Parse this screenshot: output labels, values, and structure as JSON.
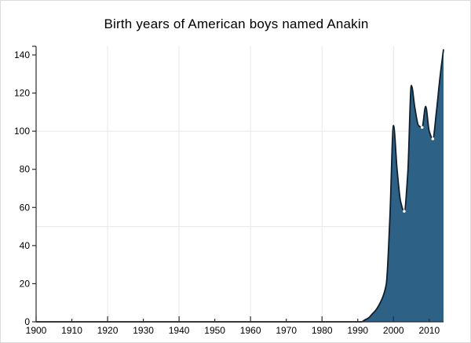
{
  "chart_data": {
    "type": "area",
    "title": "Birth years of American boys named Anakin",
    "series_name": "Anakin",
    "xlabel": "",
    "ylabel": "",
    "xlim": [
      1900,
      2014
    ],
    "ylim": [
      0,
      140
    ],
    "x_ticks": [
      1900,
      1910,
      1920,
      1930,
      1940,
      1950,
      1960,
      1970,
      1980,
      1990,
      2000,
      2010
    ],
    "y_ticks": [
      0,
      20,
      40,
      60,
      80,
      100,
      120,
      140
    ],
    "x_gridlines": [
      1920,
      1940,
      1960,
      1980,
      2000
    ],
    "y_gridlines": [
      50,
      100
    ],
    "grid_on": true,
    "legend": "none",
    "x": [
      1900,
      1990,
      1991,
      1992,
      1993,
      1994,
      1995,
      1996,
      1997,
      1998,
      1999,
      2000,
      2001,
      2002,
      2003,
      2004,
      2005,
      2006,
      2007,
      2008,
      2009,
      2010,
      2011,
      2012,
      2013,
      2014
    ],
    "y": [
      0,
      0,
      0,
      1,
      2,
      4,
      6,
      9,
      13,
      20,
      55,
      103,
      80,
      63,
      58,
      78,
      124,
      112,
      103,
      102,
      113,
      100,
      96,
      110,
      128,
      143
    ],
    "dip_markers": [
      [
        2003,
        58
      ],
      [
        2008,
        102
      ],
      [
        2011,
        96
      ]
    ],
    "colors": {
      "fill": "#2e6186",
      "line": "#101f2c",
      "grid": "#e7e7e7",
      "axis": "#2b2b2b",
      "labels": "#000000",
      "background": "#ffffff",
      "marker": "#ffffff"
    }
  }
}
